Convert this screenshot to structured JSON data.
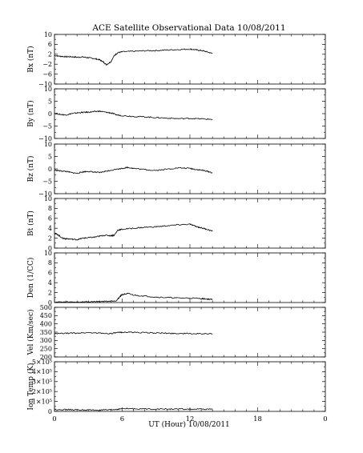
{
  "title": "ACE Satellite Observational Data   10/08/2011",
  "xlabel": "UT (Hour)   10/08/2011",
  "chart_data": {
    "type": "line",
    "title": "ACE Satellite Observational Data   10/08/2011",
    "xlabel": "UT (Hour)   10/08/2011",
    "xlim": [
      0,
      24
    ],
    "x_ticks": [
      "0",
      "6",
      "12",
      "18",
      "0"
    ],
    "x_tick_values": [
      0,
      6,
      12,
      18,
      24
    ],
    "panels": [
      {
        "id": "bx",
        "ylabel": "Bx (nT)",
        "ylim": [
          -10,
          10
        ],
        "y_ticks": [
          10,
          6,
          2,
          -2,
          -6,
          -10
        ],
        "y_tick_labels": [
          "10",
          "6",
          "2",
          "−2",
          "−6",
          "−10"
        ],
        "x": [
          0,
          0.5,
          1,
          1.5,
          2,
          2.5,
          3,
          3.5,
          4,
          4.3,
          4.6,
          5,
          5.3,
          5.6,
          6,
          7,
          8,
          9,
          10,
          11,
          12,
          12.5,
          13,
          13.5,
          14
        ],
        "y": [
          1.5,
          1.2,
          1.0,
          1.0,
          0.8,
          0.9,
          0.6,
          0.3,
          -0.2,
          -1.0,
          -2.2,
          -1.0,
          1.5,
          2.6,
          3.0,
          3.2,
          3.4,
          3.5,
          3.7,
          3.9,
          4.1,
          3.8,
          3.5,
          3.0,
          2.3
        ]
      },
      {
        "id": "by",
        "ylabel": "By (nT)",
        "ylim": [
          -10,
          10
        ],
        "y_ticks": [
          10,
          5,
          0,
          -5,
          -10
        ],
        "y_tick_labels": [
          "10",
          "5",
          "0",
          "−5",
          "−10"
        ],
        "x": [
          0,
          0.5,
          1,
          1.5,
          2,
          2.5,
          3,
          3.5,
          4,
          4.5,
          5,
          5.5,
          6,
          7,
          8,
          9,
          10,
          11,
          12,
          13,
          14
        ],
        "y": [
          0.2,
          -0.3,
          -0.5,
          0.0,
          0.3,
          0.5,
          0.6,
          0.8,
          1.0,
          0.6,
          0.3,
          -0.5,
          -0.8,
          -1.1,
          -1.3,
          -1.6,
          -1.8,
          -2.0,
          -1.9,
          -2.1,
          -2.3
        ]
      },
      {
        "id": "bz",
        "ylabel": "Bz (nT)",
        "ylim": [
          -10,
          10
        ],
        "y_ticks": [
          10,
          5,
          0,
          -5,
          -10
        ],
        "y_tick_labels": [
          "10",
          "5",
          "0",
          "−5",
          "−10"
        ],
        "x": [
          0,
          0.5,
          1,
          1.5,
          2,
          2.5,
          3,
          3.5,
          4,
          4.5,
          5,
          6,
          6.5,
          7,
          8,
          9,
          10,
          11,
          12,
          12.5,
          13,
          13.5,
          14
        ],
        "y": [
          -0.5,
          -0.8,
          -1.0,
          -1.5,
          -1.8,
          -1.2,
          -1.0,
          -1.3,
          -1.5,
          -1.0,
          -0.5,
          0.2,
          0.6,
          0.2,
          -0.3,
          -0.6,
          -0.1,
          0.4,
          0.2,
          -0.2,
          -0.5,
          -0.9,
          -1.6
        ]
      },
      {
        "id": "bt",
        "ylabel": "Bt (nT)",
        "ylim": [
          0,
          10
        ],
        "y_ticks": [
          10,
          8,
          6,
          4,
          2,
          0
        ],
        "y_tick_labels": [
          "10",
          "8",
          "6",
          "4",
          "2",
          "0"
        ],
        "x": [
          0,
          0.3,
          0.7,
          1,
          1.5,
          2,
          2.5,
          3,
          3.5,
          4,
          4.5,
          5,
          5.3,
          5.6,
          6,
          7,
          8,
          9,
          10,
          11,
          12,
          12.5,
          13,
          13.5,
          14
        ],
        "y": [
          3.0,
          2.7,
          2.0,
          1.9,
          1.8,
          1.7,
          2.0,
          2.1,
          2.2,
          2.4,
          2.6,
          2.5,
          2.6,
          3.6,
          3.8,
          4.0,
          4.2,
          4.3,
          4.5,
          4.7,
          4.8,
          4.4,
          4.1,
          3.8,
          3.4
        ]
      },
      {
        "id": "den",
        "ylabel": "Den (1/CC)",
        "ylim": [
          0,
          10
        ],
        "y_ticks": [
          10,
          8,
          6,
          4,
          2,
          0
        ],
        "y_tick_labels": [
          "10",
          "8",
          "6",
          "4",
          "2",
          "0"
        ],
        "x": [
          0,
          1,
          2,
          3,
          4,
          5,
          5.5,
          5.8,
          6,
          6.5,
          7,
          8,
          9,
          10,
          11,
          12,
          13,
          13.5,
          14
        ],
        "y": [
          0.1,
          0.1,
          0.1,
          0.15,
          0.2,
          0.3,
          0.4,
          1.2,
          1.6,
          1.8,
          1.5,
          1.3,
          1.1,
          1.0,
          0.9,
          0.9,
          0.8,
          0.7,
          0.6
        ]
      },
      {
        "id": "vel",
        "ylabel": "Vel (Km/sec)",
        "ylim": [
          200,
          500
        ],
        "y_ticks": [
          500,
          450,
          400,
          350,
          300,
          250,
          200
        ],
        "y_tick_labels": [
          "500",
          "450",
          "400",
          "350",
          "300",
          "250",
          "200"
        ],
        "x": [
          0,
          1,
          2,
          3,
          4,
          5,
          5.5,
          6,
          7,
          8,
          9,
          10,
          11,
          12,
          13,
          14
        ],
        "y": [
          340,
          343,
          345,
          347,
          344,
          342,
          346,
          350,
          349,
          347,
          345,
          343,
          342,
          341,
          340,
          339
        ]
      },
      {
        "id": "temp",
        "ylabel": "Ion Temp (K)",
        "ylim": [
          0,
          500000
        ],
        "y_ticks": [
          500000,
          400000,
          300000,
          200000,
          100000,
          0
        ],
        "y_tick_labels": [
          "5×10⁵",
          "4×10⁵",
          "3×10⁵",
          "2×10⁵",
          "1×10⁵",
          "0"
        ],
        "x": [
          0,
          1,
          2,
          3,
          4,
          5,
          5.5,
          6,
          7,
          8,
          9,
          10,
          11,
          12,
          13,
          14
        ],
        "y": [
          20000,
          18000,
          15000,
          14000,
          13000,
          15000,
          20000,
          28000,
          26000,
          25000,
          24000,
          24000,
          23000,
          22000,
          22000,
          21000
        ]
      }
    ]
  }
}
